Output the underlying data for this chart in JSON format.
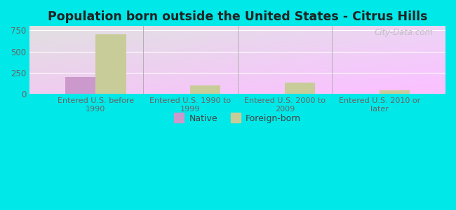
{
  "title": "Population born outside the United States - Citrus Hills",
  "categories": [
    "Entered U.S. before\n1990",
    "Entered U.S. 1990 to\n1999",
    "Entered U.S. 2000 to\n2009",
    "Entered U.S. 2010 or\nlater"
  ],
  "native_values": [
    200,
    5,
    0,
    0
  ],
  "foreign_values": [
    700,
    100,
    130,
    40
  ],
  "native_color": "#cc99cc",
  "foreign_color": "#c8cc99",
  "background_outer": "#00e8e8",
  "ylim": [
    0,
    800
  ],
  "yticks": [
    0,
    250,
    500,
    750
  ],
  "bar_width": 0.32,
  "title_fontsize": 12.5,
  "watermark": "City-Data.com"
}
